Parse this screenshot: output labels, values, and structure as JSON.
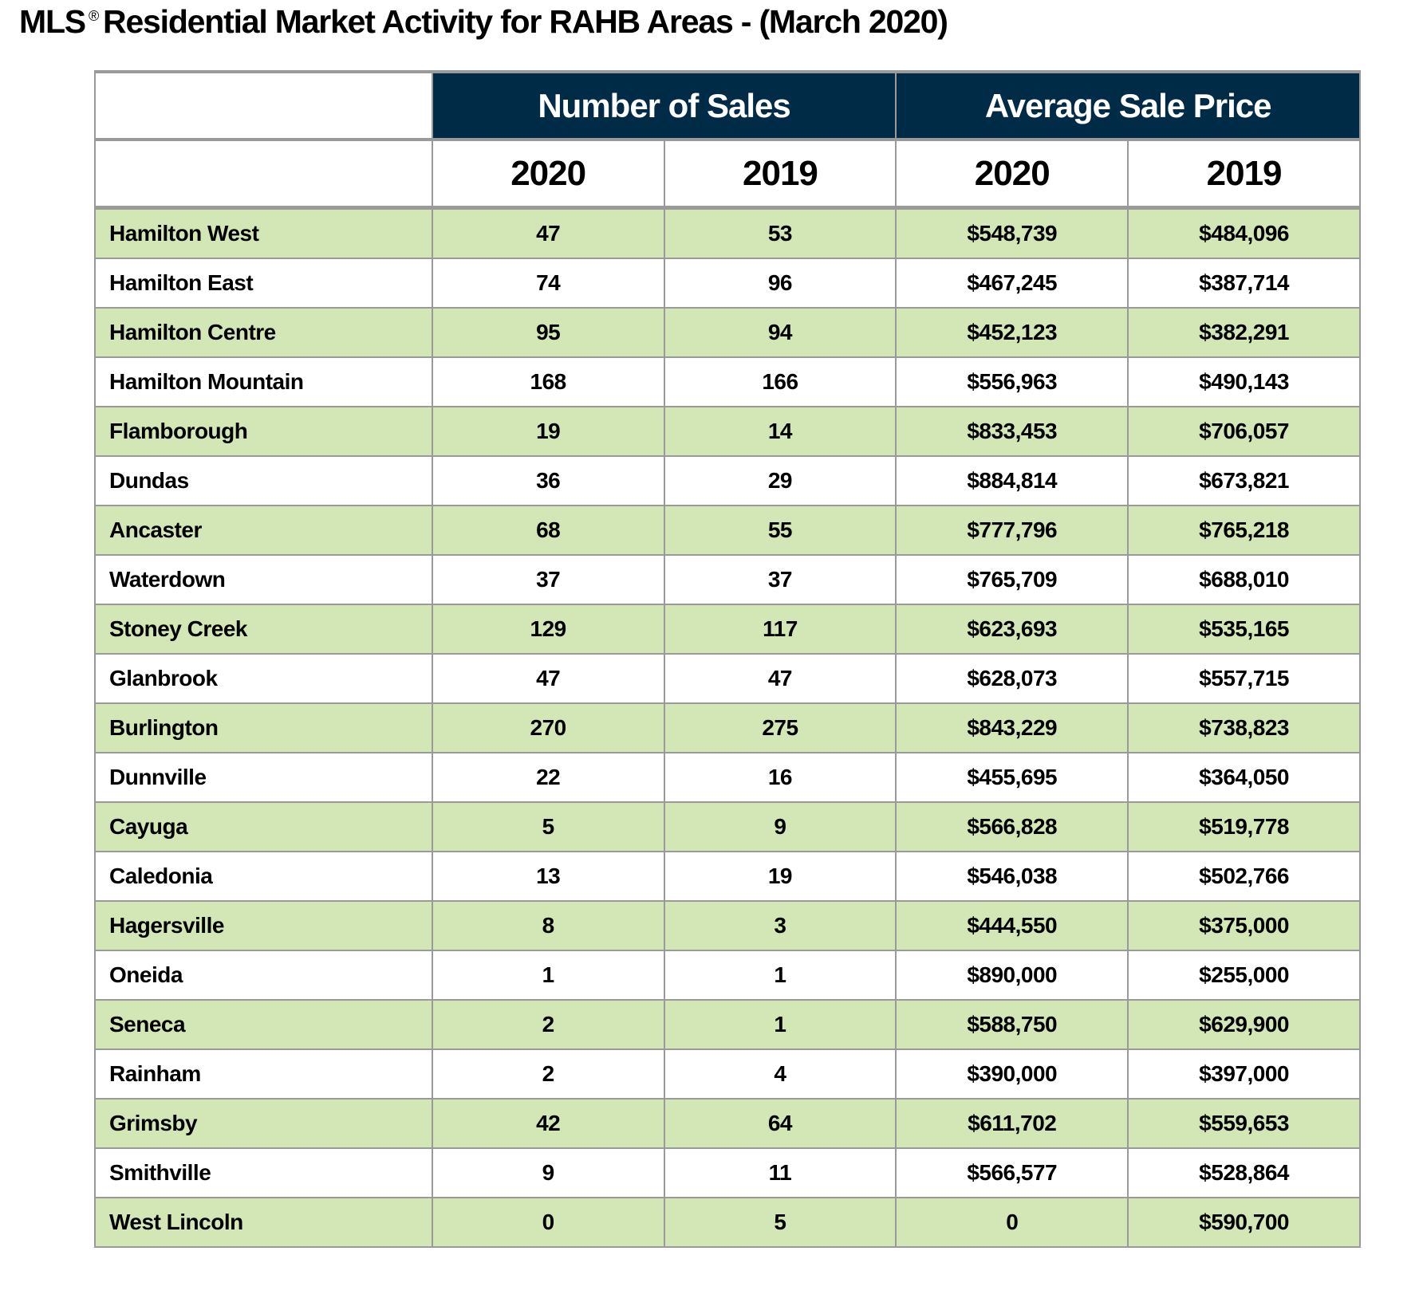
{
  "title": {
    "prefix": "MLS",
    "reg": "®",
    "text": "Residential Market Activity for RAHB Areas - (March 2020)"
  },
  "colors": {
    "header_bg": "#002b47",
    "alt_row_bg": "#d3e6b5",
    "border": "#9a9a9a"
  },
  "table": {
    "groups": [
      "Number of Sales",
      "Average Sale Price"
    ],
    "years": [
      "2020",
      "2019",
      "2020",
      "2019"
    ],
    "rows": [
      {
        "area": "Hamilton West",
        "sales2020": "47",
        "sales2019": "53",
        "price2020": "$548,739",
        "price2019": "$484,096"
      },
      {
        "area": "Hamilton East",
        "sales2020": "74",
        "sales2019": "96",
        "price2020": "$467,245",
        "price2019": "$387,714"
      },
      {
        "area": "Hamilton Centre",
        "sales2020": "95",
        "sales2019": "94",
        "price2020": "$452,123",
        "price2019": "$382,291"
      },
      {
        "area": "Hamilton Mountain",
        "sales2020": "168",
        "sales2019": "166",
        "price2020": "$556,963",
        "price2019": "$490,143"
      },
      {
        "area": "Flamborough",
        "sales2020": "19",
        "sales2019": "14",
        "price2020": "$833,453",
        "price2019": "$706,057"
      },
      {
        "area": "Dundas",
        "sales2020": "36",
        "sales2019": "29",
        "price2020": "$884,814",
        "price2019": "$673,821"
      },
      {
        "area": "Ancaster",
        "sales2020": "68",
        "sales2019": "55",
        "price2020": "$777,796",
        "price2019": "$765,218"
      },
      {
        "area": "Waterdown",
        "sales2020": "37",
        "sales2019": "37",
        "price2020": "$765,709",
        "price2019": "$688,010"
      },
      {
        "area": "Stoney Creek",
        "sales2020": "129",
        "sales2019": "117",
        "price2020": "$623,693",
        "price2019": "$535,165"
      },
      {
        "area": "Glanbrook",
        "sales2020": "47",
        "sales2019": "47",
        "price2020": "$628,073",
        "price2019": "$557,715"
      },
      {
        "area": "Burlington",
        "sales2020": "270",
        "sales2019": "275",
        "price2020": "$843,229",
        "price2019": "$738,823"
      },
      {
        "area": "Dunnville",
        "sales2020": "22",
        "sales2019": "16",
        "price2020": "$455,695",
        "price2019": "$364,050"
      },
      {
        "area": "Cayuga",
        "sales2020": "5",
        "sales2019": "9",
        "price2020": "$566,828",
        "price2019": "$519,778"
      },
      {
        "area": "Caledonia",
        "sales2020": "13",
        "sales2019": "19",
        "price2020": "$546,038",
        "price2019": "$502,766"
      },
      {
        "area": "Hagersville",
        "sales2020": "8",
        "sales2019": "3",
        "price2020": "$444,550",
        "price2019": "$375,000"
      },
      {
        "area": "Oneida",
        "sales2020": "1",
        "sales2019": "1",
        "price2020": "$890,000",
        "price2019": "$255,000"
      },
      {
        "area": "Seneca",
        "sales2020": "2",
        "sales2019": "1",
        "price2020": "$588,750",
        "price2019": "$629,900"
      },
      {
        "area": "Rainham",
        "sales2020": "2",
        "sales2019": "4",
        "price2020": "$390,000",
        "price2019": "$397,000"
      },
      {
        "area": "Grimsby",
        "sales2020": "42",
        "sales2019": "64",
        "price2020": "$611,702",
        "price2019": "$559,653"
      },
      {
        "area": "Smithville",
        "sales2020": "9",
        "sales2019": "11",
        "price2020": "$566,577",
        "price2019": "$528,864"
      },
      {
        "area": "West Lincoln",
        "sales2020": "0",
        "sales2019": "5",
        "price2020": "0",
        "price2019": "$590,700"
      }
    ]
  }
}
